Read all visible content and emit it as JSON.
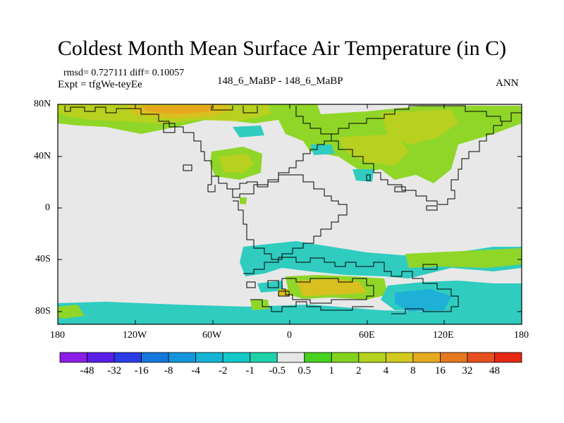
{
  "title": "Coldest Month Mean Surface Air Temperature (in C)",
  "stats": "rmsd= 0.727111 diff= 0.10057",
  "experiment": "Expt = tfgWe-teyEe",
  "comparison": "148_6_MaBP - 148_6_MaBP",
  "season": "ANN",
  "lat_labels": [
    "80N",
    "40N",
    "0",
    "40S",
    "80S"
  ],
  "lon_labels": [
    "180",
    "120W",
    "60W",
    "0",
    "60E",
    "120E",
    "180"
  ],
  "colorbar": {
    "labels": [
      "-48",
      "-32",
      "-16",
      "-8",
      "-4",
      "-2",
      "-1",
      "-0.5",
      "0.5",
      "1",
      "2",
      "4",
      "8",
      "16",
      "32",
      "48"
    ],
    "colors": [
      "#8a1ee6",
      "#5a1ee6",
      "#2a3ce6",
      "#1478dc",
      "#1496dc",
      "#14b4d2",
      "#14c8c8",
      "#1ed2aa",
      "#e6e6e6",
      "#46d21e",
      "#82d21e",
      "#b4d21e",
      "#d2c81e",
      "#e6aa1e",
      "#e6781e",
      "#e6501e",
      "#e62814"
    ]
  },
  "colors": {
    "land_fill": "#e8e8e8",
    "background": "#ffffff"
  }
}
